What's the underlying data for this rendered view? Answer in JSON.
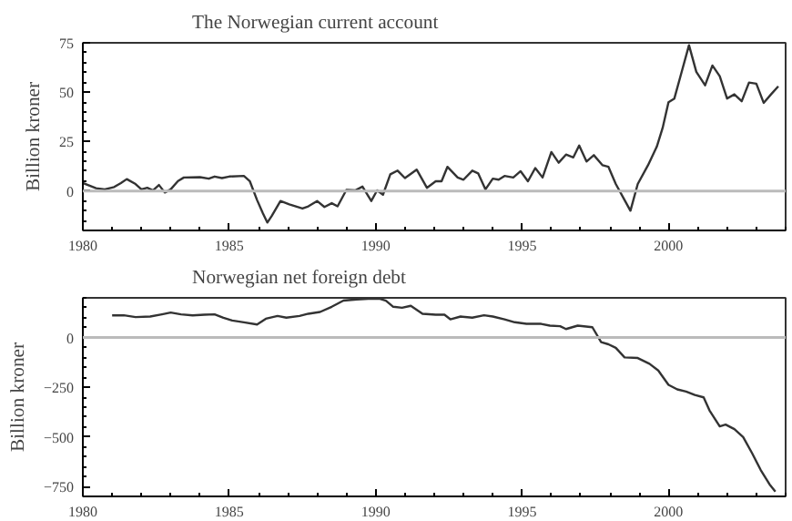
{
  "chart_data": [
    {
      "type": "line",
      "title": "The Norwegian current account",
      "ylabel": "Billion kroner",
      "x": [
        1980,
        1980.45,
        1980.75,
        1981.07,
        1981.3,
        1981.5,
        1981.8,
        1982.0,
        1982.2,
        1982.4,
        1982.6,
        1982.8,
        1983.0,
        1983.25,
        1983.45,
        1984.0,
        1984.3,
        1984.5,
        1984.75,
        1985.0,
        1985.5,
        1985.7,
        1985.95,
        1986.15,
        1986.3,
        1986.45,
        1986.75,
        1987.05,
        1987.5,
        1987.7,
        1988.0,
        1988.25,
        1988.5,
        1988.7,
        1989.0,
        1989.3,
        1989.55,
        1989.85,
        1990.05,
        1990.25,
        1990.5,
        1990.75,
        1991.0,
        1991.4,
        1991.75,
        1992.05,
        1992.25,
        1992.45,
        1992.8,
        1993.0,
        1993.3,
        1993.5,
        1993.75,
        1994.0,
        1994.2,
        1994.4,
        1994.7,
        1994.95,
        1995.2,
        1995.45,
        1995.7,
        1996.0,
        1996.25,
        1996.5,
        1996.75,
        1996.95,
        1997.2,
        1997.45,
        1997.75,
        1997.95,
        1998.2,
        1998.5,
        1998.7,
        1998.95,
        1999.3,
        1999.6,
        1999.8,
        2000.0,
        2000.2,
        2000.4,
        2000.7,
        2000.95,
        2001.25,
        2001.5,
        2001.75,
        2002.0,
        2002.25,
        2002.5,
        2002.75,
        2003.0,
        2003.25,
        2003.5,
        2003.75
      ],
      "values": [
        4,
        1.4,
        0.8,
        2,
        4,
        6,
        3.5,
        0.8,
        1.6,
        0.3,
        3,
        -0.8,
        0.8,
        5,
        6.8,
        7,
        6.2,
        7.3,
        6.5,
        7.3,
        7.6,
        5,
        -4.6,
        -11.4,
        -16,
        -12.7,
        -5.1,
        -6.8,
        -8.9,
        -7.8,
        -5.1,
        -8.1,
        -6.2,
        -7.8,
        0.5,
        0.3,
        2.2,
        -5.1,
        0.3,
        -1.9,
        8.4,
        10.3,
        6.5,
        10.8,
        1.6,
        4.9,
        4.9,
        12.2,
        6.8,
        5.7,
        10.3,
        8.9,
        0.8,
        6.2,
        5.7,
        7.6,
        6.8,
        10,
        4.9,
        11.6,
        6.8,
        19.7,
        14.3,
        18.4,
        17,
        23,
        14.9,
        18.1,
        13,
        12.2,
        3.5,
        -4.6,
        -10,
        3.5,
        13,
        22.4,
        31.9,
        44.9,
        46.8,
        57.6,
        73.8,
        60.3,
        53.5,
        63.5,
        58.1,
        46.8,
        48.9,
        45.4,
        54.9,
        54.3,
        44.6,
        48.9,
        53
      ],
      "color": "#333333",
      "xlim": [
        1980,
        2004
      ],
      "ylim": [
        -20,
        75
      ],
      "xticks": [
        1980,
        1985,
        1990,
        1995,
        2000
      ],
      "yticks": [
        0,
        25,
        50,
        75
      ],
      "ref_lines": [
        {
          "axis": "y",
          "value": 0,
          "label": null,
          "color": "#bbbbbb"
        }
      ]
    },
    {
      "type": "line",
      "title": "Norwegian net foreign debt",
      "ylabel": "Billion kroner",
      "x": [
        1981.0,
        1981.4,
        1981.8,
        1982.3,
        1982.7,
        1983.0,
        1983.35,
        1983.75,
        1984.15,
        1984.5,
        1984.8,
        1985.1,
        1985.5,
        1985.95,
        1986.25,
        1986.65,
        1986.95,
        1987.4,
        1987.7,
        1988.1,
        1988.5,
        1988.9,
        1989.35,
        1989.75,
        1990.15,
        1990.35,
        1990.6,
        1990.9,
        1991.2,
        1991.6,
        1992.05,
        1992.35,
        1992.55,
        1992.9,
        1993.3,
        1993.7,
        1994.0,
        1994.4,
        1994.75,
        1995.15,
        1995.65,
        1995.95,
        1996.3,
        1996.5,
        1996.9,
        1997.4,
        1997.7,
        1997.95,
        1998.2,
        1998.5,
        1998.95,
        1999.35,
        1999.65,
        2000.0,
        2000.3,
        2000.6,
        2000.9,
        2001.2,
        2001.4,
        2001.75,
        2001.95,
        2002.25,
        2002.55,
        2002.85,
        2003.15,
        2003.45,
        2003.65
      ],
      "values": [
        112,
        112,
        103,
        106,
        117,
        126,
        117,
        112,
        115,
        117,
        100,
        86,
        77,
        66,
        95,
        109,
        100,
        109,
        120,
        129,
        155,
        186,
        192,
        195,
        195,
        186,
        155,
        150,
        160,
        120,
        115,
        115,
        92,
        106,
        100,
        112,
        106,
        92,
        77,
        69,
        69,
        60,
        57,
        43,
        60,
        52,
        -23,
        -34,
        -52,
        -100,
        -103,
        -132,
        -166,
        -238,
        -261,
        -272,
        -289,
        -301,
        -367,
        -447,
        -438,
        -461,
        -501,
        -581,
        -667,
        -739,
        -776
      ],
      "color": "#333333",
      "xlim": [
        1980,
        2004
      ],
      "ylim": [
        -800,
        200
      ],
      "xticks": [
        1980,
        1985,
        1990,
        1995,
        2000
      ],
      "yticks": [
        -750,
        -500,
        -250,
        0
      ],
      "ref_lines": [
        {
          "axis": "y",
          "value": 0,
          "label": null,
          "color": "#bbbbbb"
        }
      ]
    }
  ]
}
